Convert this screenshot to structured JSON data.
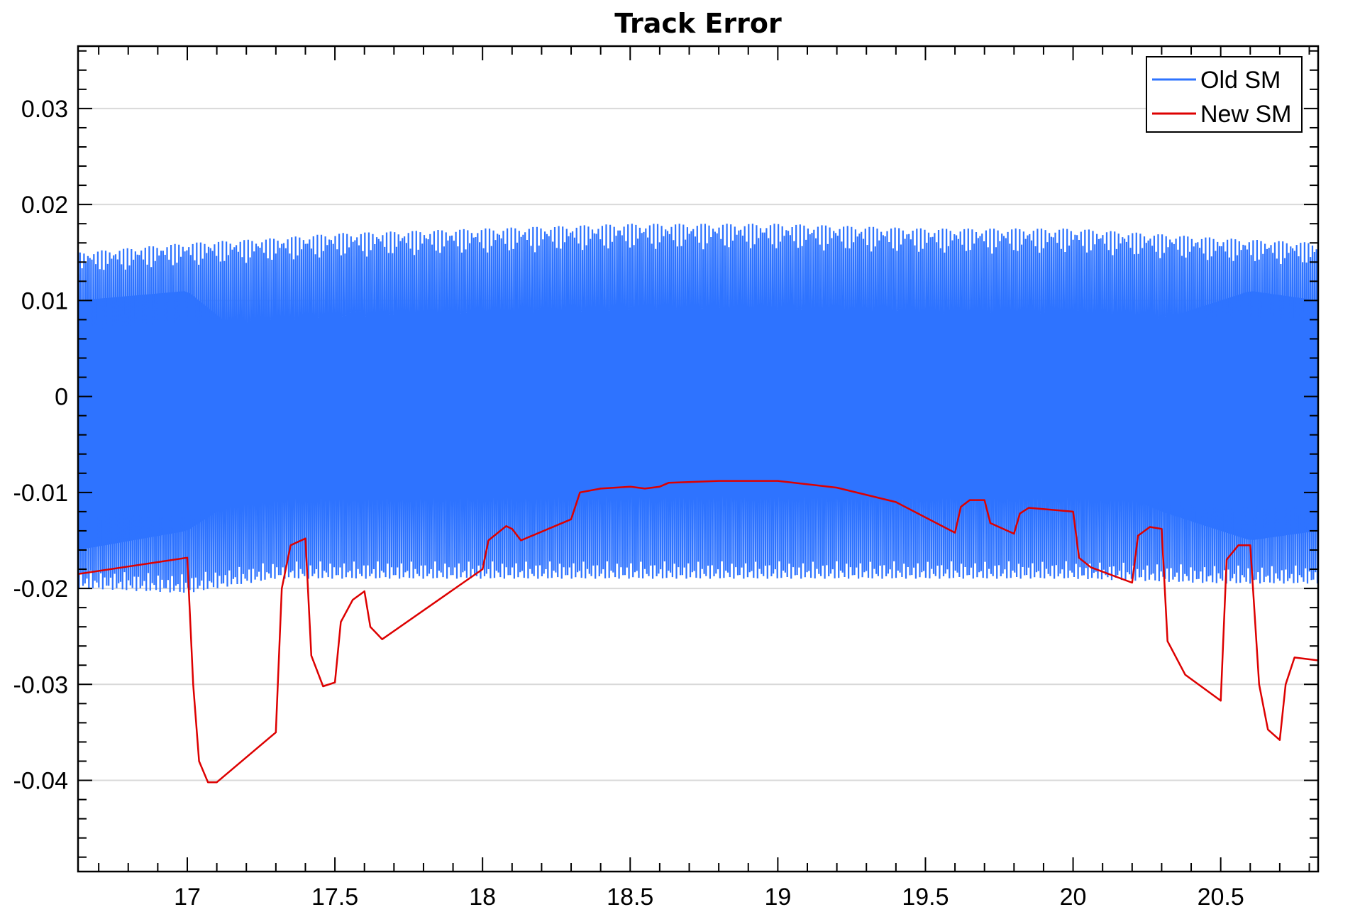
{
  "chart_data": {
    "type": "line",
    "title": "Track Error",
    "xlabel": "",
    "ylabel": "",
    "xlim": [
      16.63,
      20.83
    ],
    "ylim": [
      -0.0495,
      0.0365
    ],
    "xticks": [
      17,
      17.5,
      18,
      18.5,
      19,
      19.5,
      20,
      20.5
    ],
    "xtick_labels": [
      "17",
      "17.5",
      "18",
      "18.5",
      "19",
      "19.5",
      "20",
      "20.5"
    ],
    "yticks": [
      0.03,
      0.02,
      0.01,
      0,
      -0.01,
      -0.02,
      -0.03,
      -0.04
    ],
    "ytick_labels": [
      "0.03",
      "0.02",
      "0.01",
      "0",
      "-0.01",
      "-0.02",
      "-0.03",
      "-0.04"
    ],
    "grid": "horizontal",
    "legend_position": "top-right",
    "colors": {
      "old": "#2e73ff",
      "new": "#dd0000",
      "grid": "#d9d9d9"
    },
    "series": [
      {
        "name": "Old SM",
        "color": "#2e73ff",
        "kind": "dense-oscillation",
        "x_range": [
          16.63,
          20.83
        ],
        "upper_envelope": [
          [
            16.63,
            0.015
          ],
          [
            17.0,
            0.016
          ],
          [
            17.3,
            0.0165
          ],
          [
            17.5,
            0.017
          ],
          [
            18.0,
            0.0175
          ],
          [
            18.5,
            0.018
          ],
          [
            19.0,
            0.018
          ],
          [
            19.5,
            0.0175
          ],
          [
            20.0,
            0.0175
          ],
          [
            20.5,
            0.0165
          ],
          [
            20.83,
            0.016
          ]
        ],
        "lower_envelope": [
          [
            16.63,
            -0.02
          ],
          [
            17.0,
            -0.0205
          ],
          [
            17.3,
            -0.019
          ],
          [
            17.5,
            -0.019
          ],
          [
            18.0,
            -0.019
          ],
          [
            18.5,
            -0.019
          ],
          [
            19.0,
            -0.019
          ],
          [
            19.5,
            -0.019
          ],
          [
            20.0,
            -0.019
          ],
          [
            20.5,
            -0.0195
          ],
          [
            20.83,
            -0.0195
          ]
        ],
        "dense_band": [
          [
            16.63,
            0.01,
            -0.016
          ],
          [
            17.0,
            0.011,
            -0.014
          ],
          [
            17.2,
            0.006,
            -0.01
          ],
          [
            17.5,
            0.003,
            -0.006
          ],
          [
            18.0,
            0.002,
            -0.005
          ],
          [
            18.5,
            0.0,
            -0.003
          ],
          [
            19.0,
            0.0,
            -0.003
          ],
          [
            19.5,
            0.0,
            -0.003
          ],
          [
            20.0,
            0.004,
            -0.008
          ],
          [
            20.3,
            0.008,
            -0.012
          ],
          [
            20.6,
            0.011,
            -0.015
          ],
          [
            20.83,
            0.01,
            -0.014
          ]
        ]
      },
      {
        "name": "New SM",
        "color": "#dd0000",
        "kind": "line",
        "points": [
          [
            16.63,
            -0.0185
          ],
          [
            17.0,
            -0.0168
          ],
          [
            17.02,
            -0.03
          ],
          [
            17.04,
            -0.038
          ],
          [
            17.07,
            -0.0402
          ],
          [
            17.1,
            -0.0402
          ],
          [
            17.3,
            -0.035
          ],
          [
            17.32,
            -0.02
          ],
          [
            17.35,
            -0.0155
          ],
          [
            17.4,
            -0.0148
          ],
          [
            17.42,
            -0.027
          ],
          [
            17.46,
            -0.0302
          ],
          [
            17.5,
            -0.0298
          ],
          [
            17.52,
            -0.0235
          ],
          [
            17.56,
            -0.0212
          ],
          [
            17.6,
            -0.0203
          ],
          [
            17.62,
            -0.024
          ],
          [
            17.66,
            -0.0253
          ],
          [
            18.0,
            -0.018
          ],
          [
            18.02,
            -0.015
          ],
          [
            18.08,
            -0.0135
          ],
          [
            18.1,
            -0.0138
          ],
          [
            18.13,
            -0.015
          ],
          [
            18.3,
            -0.0128
          ],
          [
            18.33,
            -0.01
          ],
          [
            18.4,
            -0.0096
          ],
          [
            18.5,
            -0.0094
          ],
          [
            18.55,
            -0.0096
          ],
          [
            18.6,
            -0.0094
          ],
          [
            18.63,
            -0.009
          ],
          [
            18.8,
            -0.0088
          ],
          [
            19.0,
            -0.0088
          ],
          [
            19.2,
            -0.0095
          ],
          [
            19.4,
            -0.011
          ],
          [
            19.6,
            -0.0142
          ],
          [
            19.62,
            -0.0115
          ],
          [
            19.65,
            -0.0108
          ],
          [
            19.7,
            -0.0108
          ],
          [
            19.72,
            -0.0132
          ],
          [
            19.8,
            -0.0143
          ],
          [
            19.82,
            -0.0122
          ],
          [
            19.85,
            -0.0116
          ],
          [
            20.0,
            -0.012
          ],
          [
            20.02,
            -0.0168
          ],
          [
            20.06,
            -0.0178
          ],
          [
            20.2,
            -0.0194
          ],
          [
            20.22,
            -0.0145
          ],
          [
            20.26,
            -0.0136
          ],
          [
            20.3,
            -0.0138
          ],
          [
            20.32,
            -0.0255
          ],
          [
            20.38,
            -0.029
          ],
          [
            20.5,
            -0.0317
          ],
          [
            20.52,
            -0.017
          ],
          [
            20.56,
            -0.0155
          ],
          [
            20.6,
            -0.0155
          ],
          [
            20.63,
            -0.03
          ],
          [
            20.66,
            -0.0347
          ],
          [
            20.7,
            -0.0358
          ],
          [
            20.72,
            -0.03
          ],
          [
            20.75,
            -0.0272
          ],
          [
            20.83,
            -0.0275
          ]
        ]
      }
    ]
  }
}
